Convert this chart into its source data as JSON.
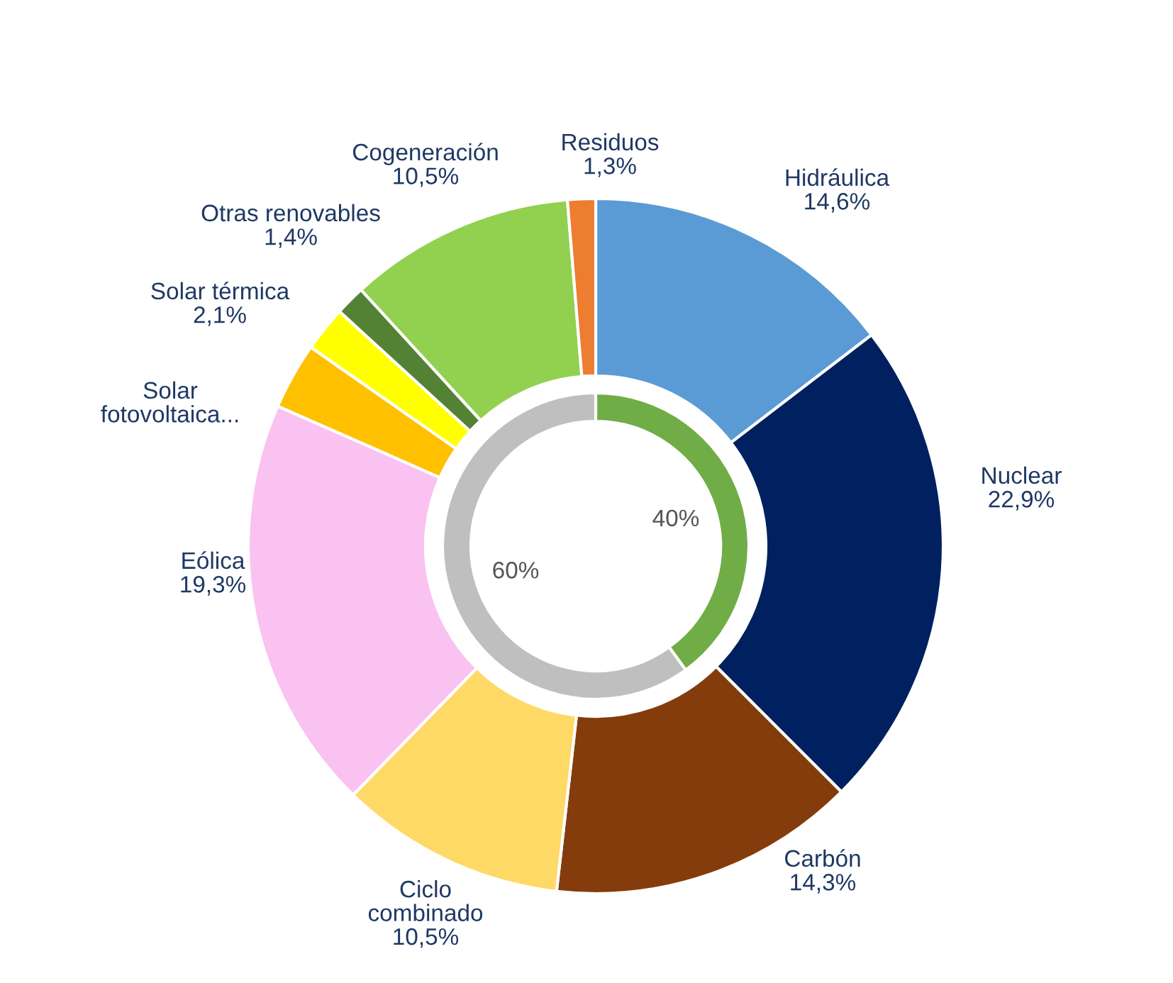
{
  "chart_data": {
    "type": "donut",
    "categories": [
      "Hidráulica",
      "Nuclear",
      "Carbón",
      "Ciclo combinado",
      "Eólica",
      "Solar fotovoltaica...",
      "Solar térmica",
      "Otras renovables",
      "Cogeneración",
      "Residuos"
    ],
    "series": [
      {
        "values": [
          14.6,
          22.9,
          14.3,
          10.5,
          19.3,
          3.1,
          2.1,
          1.4,
          10.5,
          1.3
        ],
        "value_labels": [
          "14,6%",
          "22,9%",
          "14,3%",
          "10,5%",
          "19,3%",
          null,
          "2,1%",
          "1,4%",
          "10,5%",
          "1,3%"
        ],
        "colors": [
          "#5b9bd5",
          "#002060",
          "#843c0c",
          "#ffd966",
          "#f9c2f0",
          "#ffc000",
          "#ffff00",
          "#548235",
          "#92d050",
          "#ed7d31"
        ]
      },
      {
        "x": [
          null,
          null
        ],
        "values": [
          40,
          60
        ],
        "value_labels": [
          "40%",
          "60%"
        ],
        "colors": [
          "#70ad47",
          "#bfbfbf"
        ]
      }
    ],
    "legend": false
  }
}
